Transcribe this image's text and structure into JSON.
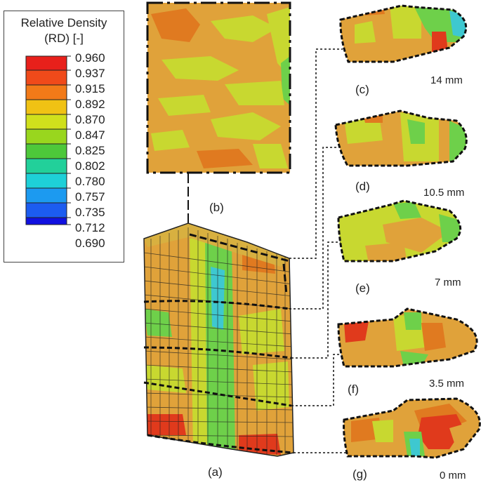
{
  "legend": {
    "title_line1": "Relative Density",
    "title_line2": "(RD) [-]",
    "values": [
      "0.960",
      "0.937",
      "0.915",
      "0.892",
      "0.870",
      "0.847",
      "0.825",
      "0.802",
      "0.780",
      "0.757",
      "0.735",
      "0.712",
      "0.690"
    ],
    "colors": [
      "#e8201b",
      "#f04a1a",
      "#f27a18",
      "#f0c214",
      "#d0e01c",
      "#99d61e",
      "#4dc83a",
      "#22d09a",
      "#1ed0d8",
      "#1c9af0",
      "#1c5cf0",
      "#1c30e8",
      "#1010e0"
    ]
  },
  "panels": {
    "a": "(a)",
    "b": "(b)",
    "c": "(c)",
    "d": "(d)",
    "e": "(e)",
    "f": "(f)",
    "g": "(g)"
  },
  "depths": {
    "c": "14 mm",
    "d": "10.5 mm",
    "e": "7 mm",
    "f": "3.5 mm",
    "g": "0 mm"
  },
  "palette": {
    "orange": "#e0a23a",
    "orange_dark": "#e07a20",
    "red": "#e03a1c",
    "yellow_green": "#c8d830",
    "green": "#6ed04a",
    "cyan": "#3ec8d0",
    "outline": "#111111"
  }
}
